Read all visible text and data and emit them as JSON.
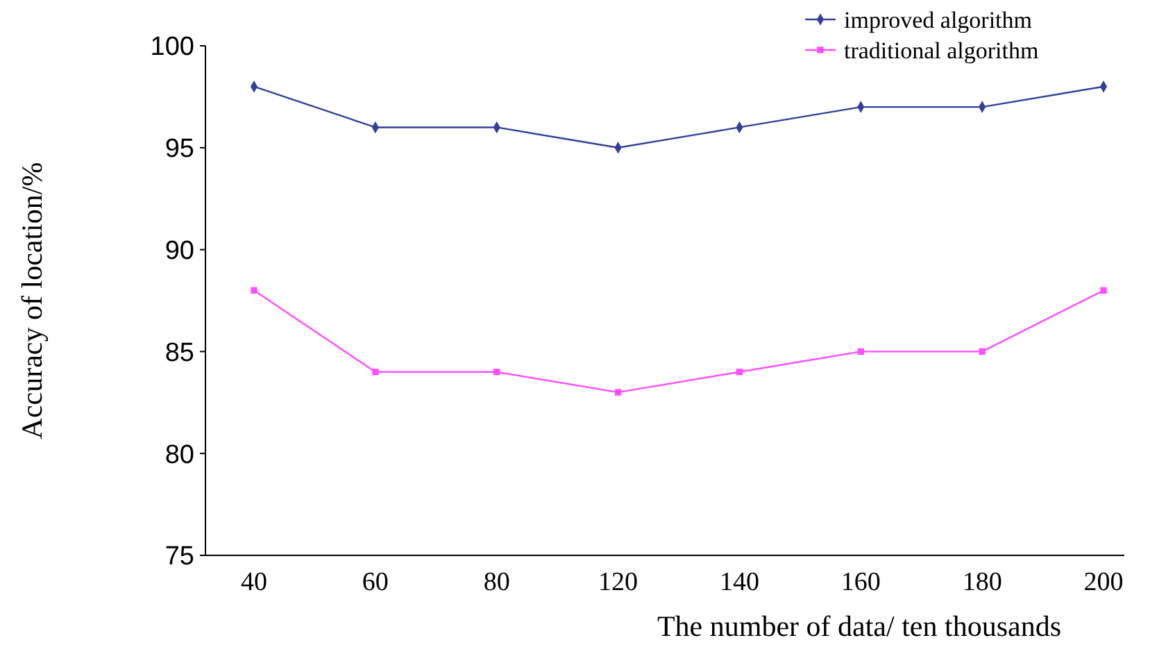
{
  "chart_data": {
    "type": "line",
    "xlabel": "The number of data/ ten thousands",
    "ylabel": "Accuracy of location/%",
    "categories": [
      "40",
      "60",
      "80",
      "120",
      "140",
      "160",
      "180",
      "200"
    ],
    "series": [
      {
        "name": "improved algorithm",
        "color": "#333f99",
        "marker": "diamond",
        "values": [
          98,
          96,
          96,
          95,
          96,
          97,
          97,
          98
        ]
      },
      {
        "name": "traditional algorithm",
        "color": "#ff4dff",
        "marker": "square",
        "values": [
          88,
          84,
          84,
          83,
          84,
          85,
          85,
          88
        ]
      }
    ],
    "ylim": [
      75,
      100
    ],
    "yticks": [
      75,
      80,
      85,
      90,
      95,
      100
    ],
    "grid": false,
    "legend": "top right"
  }
}
